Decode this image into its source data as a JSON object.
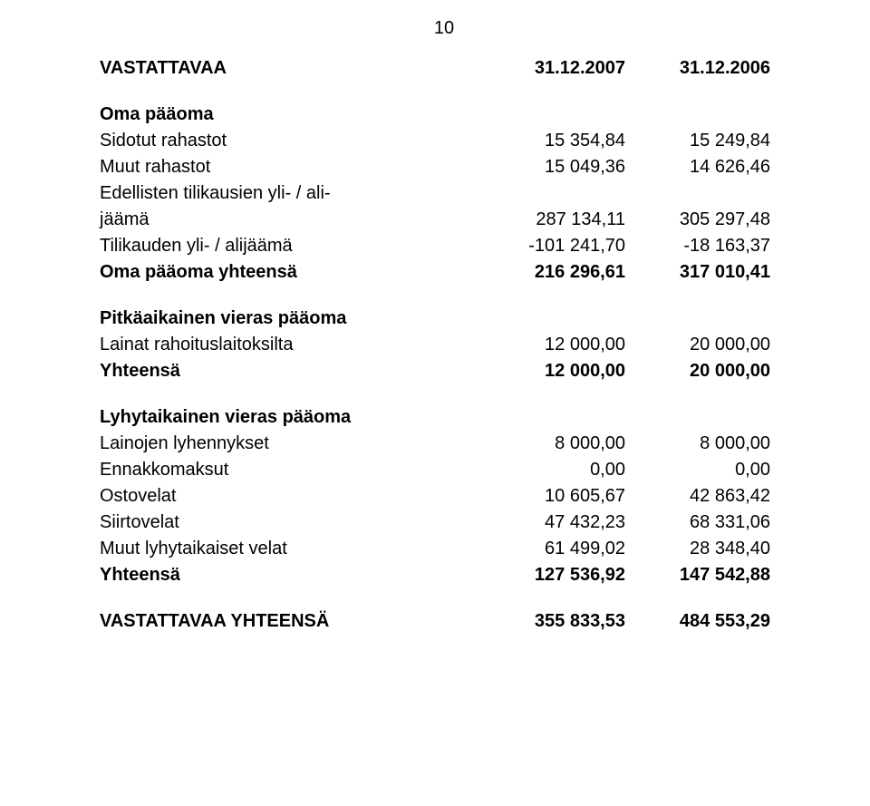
{
  "page_number": "10",
  "header": {
    "title": "VASTATTAVAA",
    "col1": "31.12.2007",
    "col2": "31.12.2006"
  },
  "sections": [
    {
      "title": "Oma pääoma",
      "rows": [
        {
          "label": "Sidotut rahastot",
          "c1": "15 354,84",
          "c2": "15 249,84"
        },
        {
          "label": "Muut rahastot",
          "c1": "15 049,36",
          "c2": "14 626,46"
        },
        {
          "label": "Edellisten tilikausien yli- / ali-",
          "c1": "",
          "c2": ""
        },
        {
          "label": "jäämä",
          "c1": "287 134,11",
          "c2": "305 297,48"
        },
        {
          "label": "Tilikauden yli- / alijäämä",
          "c1": "-101 241,70",
          "c2": "-18 163,37"
        }
      ],
      "total": {
        "label": "Oma pääoma yhteensä",
        "c1": "216 296,61",
        "c2": "317 010,41"
      }
    },
    {
      "title": "Pitkäaikainen vieras pääoma",
      "rows": [
        {
          "label": "Lainat rahoituslaitoksilta",
          "c1": "12 000,00",
          "c2": "20 000,00"
        }
      ],
      "total": {
        "label": "Yhteensä",
        "c1": "12 000,00",
        "c2": "20 000,00"
      }
    },
    {
      "title": "Lyhytaikainen vieras pääoma",
      "rows": [
        {
          "label": "Lainojen lyhennykset",
          "c1": "8 000,00",
          "c2": "8 000,00"
        },
        {
          "label": "Ennakkomaksut",
          "c1": "0,00",
          "c2": "0,00"
        },
        {
          "label": "Ostovelat",
          "c1": "10 605,67",
          "c2": "42 863,42"
        },
        {
          "label": "Siirtovelat",
          "c1": "47 432,23",
          "c2": "68 331,06"
        },
        {
          "label": "Muut lyhytaikaiset velat",
          "c1": "61 499,02",
          "c2": "28 348,40"
        }
      ],
      "total": {
        "label": "Yhteensä",
        "c1": "127 536,92",
        "c2": "147 542,88"
      }
    }
  ],
  "grand_total": {
    "label": "VASTATTAVAA YHTEENSÄ",
    "c1": "355 833,53",
    "c2": "484 553,29"
  }
}
